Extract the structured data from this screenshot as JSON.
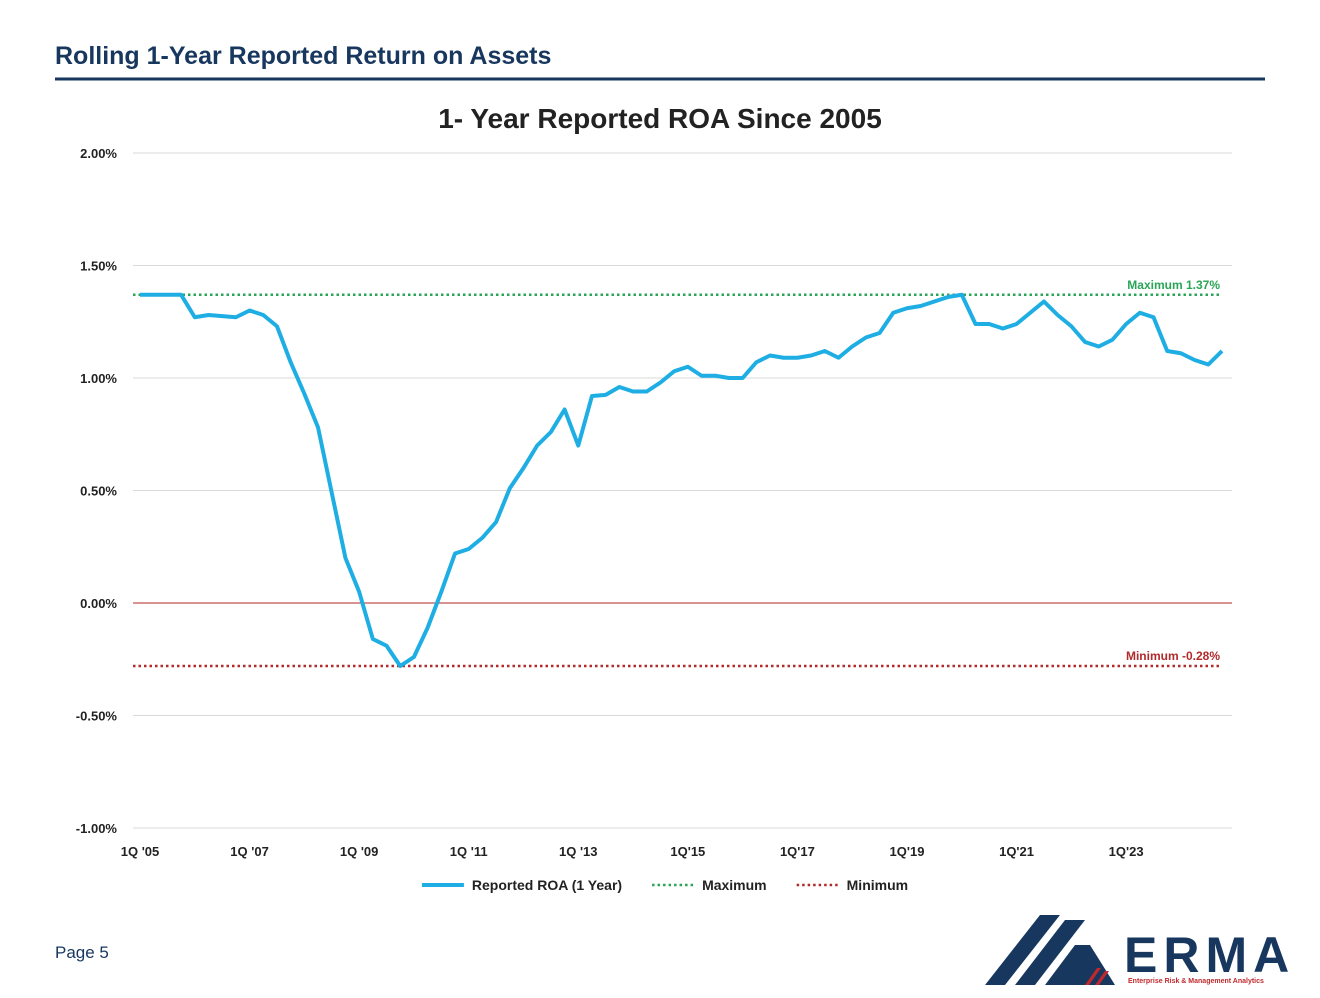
{
  "header": {
    "title": "Rolling 1-Year Reported Return on Assets"
  },
  "chart_data": {
    "type": "line",
    "title": "1- Year Reported ROA Since 2005",
    "categories": [
      "1Q '05",
      null,
      null,
      null,
      null,
      null,
      null,
      null,
      "1Q '07",
      null,
      null,
      null,
      null,
      null,
      null,
      null,
      "1Q '09",
      null,
      null,
      null,
      null,
      null,
      null,
      null,
      "1Q '11",
      null,
      null,
      null,
      null,
      null,
      null,
      null,
      "1Q '13",
      null,
      null,
      null,
      null,
      null,
      null,
      null,
      "1Q'15",
      null,
      null,
      null,
      null,
      null,
      null,
      null,
      "1Q'17",
      null,
      null,
      null,
      null,
      null,
      null,
      null,
      "1Q'19",
      null,
      null,
      null,
      null,
      null,
      null,
      null,
      "1Q'21",
      null,
      null,
      null,
      null,
      null,
      null,
      null,
      "1Q'23",
      null,
      null,
      null,
      null,
      null,
      null,
      null
    ],
    "series": [
      {
        "name": "Reported ROA (1 Year)",
        "color": "#1eaee4",
        "values": [
          1.37,
          1.37,
          1.37,
          1.37,
          1.27,
          1.28,
          1.275,
          1.27,
          1.3,
          1.28,
          1.23,
          1.07,
          0.93,
          0.78,
          0.49,
          0.2,
          0.05,
          -0.16,
          -0.19,
          -0.28,
          -0.24,
          -0.11,
          0.05,
          0.22,
          0.24,
          0.29,
          0.36,
          0.51,
          0.6,
          0.7,
          0.76,
          0.86,
          0.7,
          0.92,
          0.925,
          0.96,
          0.94,
          0.94,
          0.98,
          1.03,
          1.05,
          1.01,
          1.01,
          1.0,
          1.0,
          1.07,
          1.1,
          1.09,
          1.09,
          1.1,
          1.12,
          1.09,
          1.14,
          1.18,
          1.2,
          1.29,
          1.31,
          1.32,
          1.34,
          1.36,
          1.37,
          1.24,
          1.24,
          1.22,
          1.24,
          1.29,
          1.34,
          1.28,
          1.23,
          1.16,
          1.14,
          1.17,
          1.24,
          1.29,
          1.27,
          1.12,
          1.11,
          1.08,
          1.06,
          1.12
        ]
      }
    ],
    "reference_lines": [
      {
        "name": "Maximum",
        "value": 1.37,
        "label": "Maximum 1.37%",
        "color": "#2aa557"
      },
      {
        "name": "Minimum",
        "value": -0.28,
        "label": "Minimum -0.28%",
        "color": "#b22a2a"
      }
    ],
    "ylim": [
      -1,
      2
    ],
    "yticks": [
      {
        "value": -1,
        "label": "-1.00%"
      },
      {
        "value": -0.5,
        "label": "-0.50%"
      },
      {
        "value": 0,
        "label": "0.00%"
      },
      {
        "value": 0.5,
        "label": "0.50%"
      },
      {
        "value": 1,
        "label": "1.00%"
      },
      {
        "value": 1.5,
        "label": "1.50%"
      },
      {
        "value": 2,
        "label": "2.00%"
      }
    ],
    "grid": true,
    "zero_line_color": "#c0504d",
    "legend": "bottom"
  },
  "footer": {
    "page": "Page 5",
    "logo": {
      "name": "ERMA",
      "tagline": "Enterprise Risk & Management Analytics"
    }
  }
}
